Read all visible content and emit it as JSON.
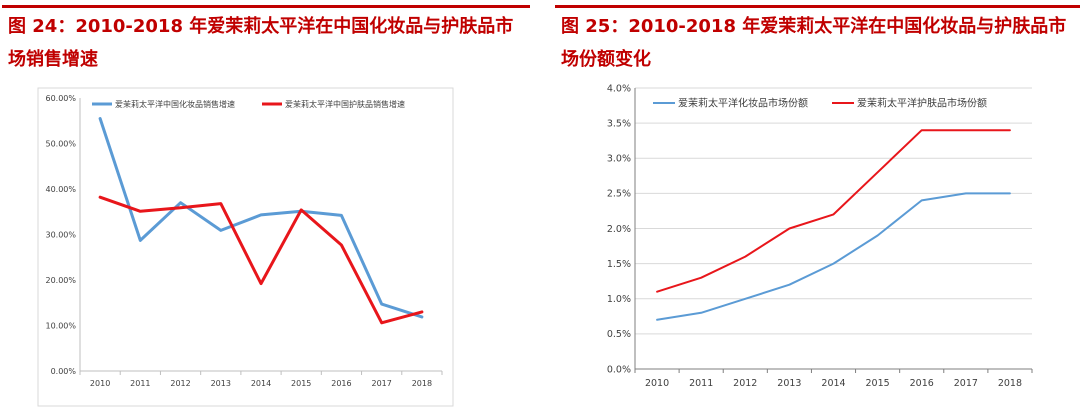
{
  "chart_data": [
    {
      "type": "line",
      "title": "图 24：2010-2018 年爱茉莉太平洋在中国化妆品与护肤品市场销售增速",
      "xlabel": "",
      "ylabel": "",
      "categories": [
        "2010",
        "2011",
        "2012",
        "2013",
        "2014",
        "2015",
        "2016",
        "2017",
        "2018"
      ],
      "series": [
        {
          "name": "爱茉莉太平洋中国化妆品销售增速",
          "color": "#5b9bd5",
          "values": [
            55.5,
            28.7,
            37.0,
            30.9,
            34.3,
            35.1,
            34.2,
            14.7,
            11.9
          ]
        },
        {
          "name": "爱茉莉太平洋中国护肤品销售增速",
          "color": "#e8161b",
          "values": [
            38.2,
            35.1,
            35.9,
            36.8,
            19.2,
            35.4,
            27.7,
            10.6,
            13.0
          ]
        }
      ],
      "ylim": [
        0,
        60
      ],
      "yticks": [
        "0.00%",
        "10.00%",
        "20.00%",
        "30.00%",
        "40.00%",
        "50.00%",
        "60.00%"
      ],
      "grid": false,
      "legend": "top"
    },
    {
      "type": "line",
      "title": "图 25：2010-2018 年爱茉莉太平洋在中国化妆品与护肤品市场份额变化",
      "xlabel": "",
      "ylabel": "",
      "categories": [
        "2010",
        "2011",
        "2012",
        "2013",
        "2014",
        "2015",
        "2016",
        "2017",
        "2018"
      ],
      "series": [
        {
          "name": "爱茉莉太平洋化妆品市场份额",
          "color": "#5b9bd5",
          "values": [
            0.7,
            0.8,
            1.0,
            1.2,
            1.5,
            1.9,
            2.4,
            2.5,
            2.5
          ]
        },
        {
          "name": "爱茉莉太平洋护肤品市场份额",
          "color": "#e8161b",
          "values": [
            1.1,
            1.3,
            1.6,
            2.0,
            2.2,
            2.8,
            3.4,
            3.4,
            3.4
          ]
        }
      ],
      "ylim": [
        0,
        4
      ],
      "yticks": [
        "0.0%",
        "0.5%",
        "1.0%",
        "1.5%",
        "2.0%",
        "2.5%",
        "3.0%",
        "3.5%",
        "4.0%"
      ],
      "grid": true,
      "legend": "top"
    }
  ]
}
